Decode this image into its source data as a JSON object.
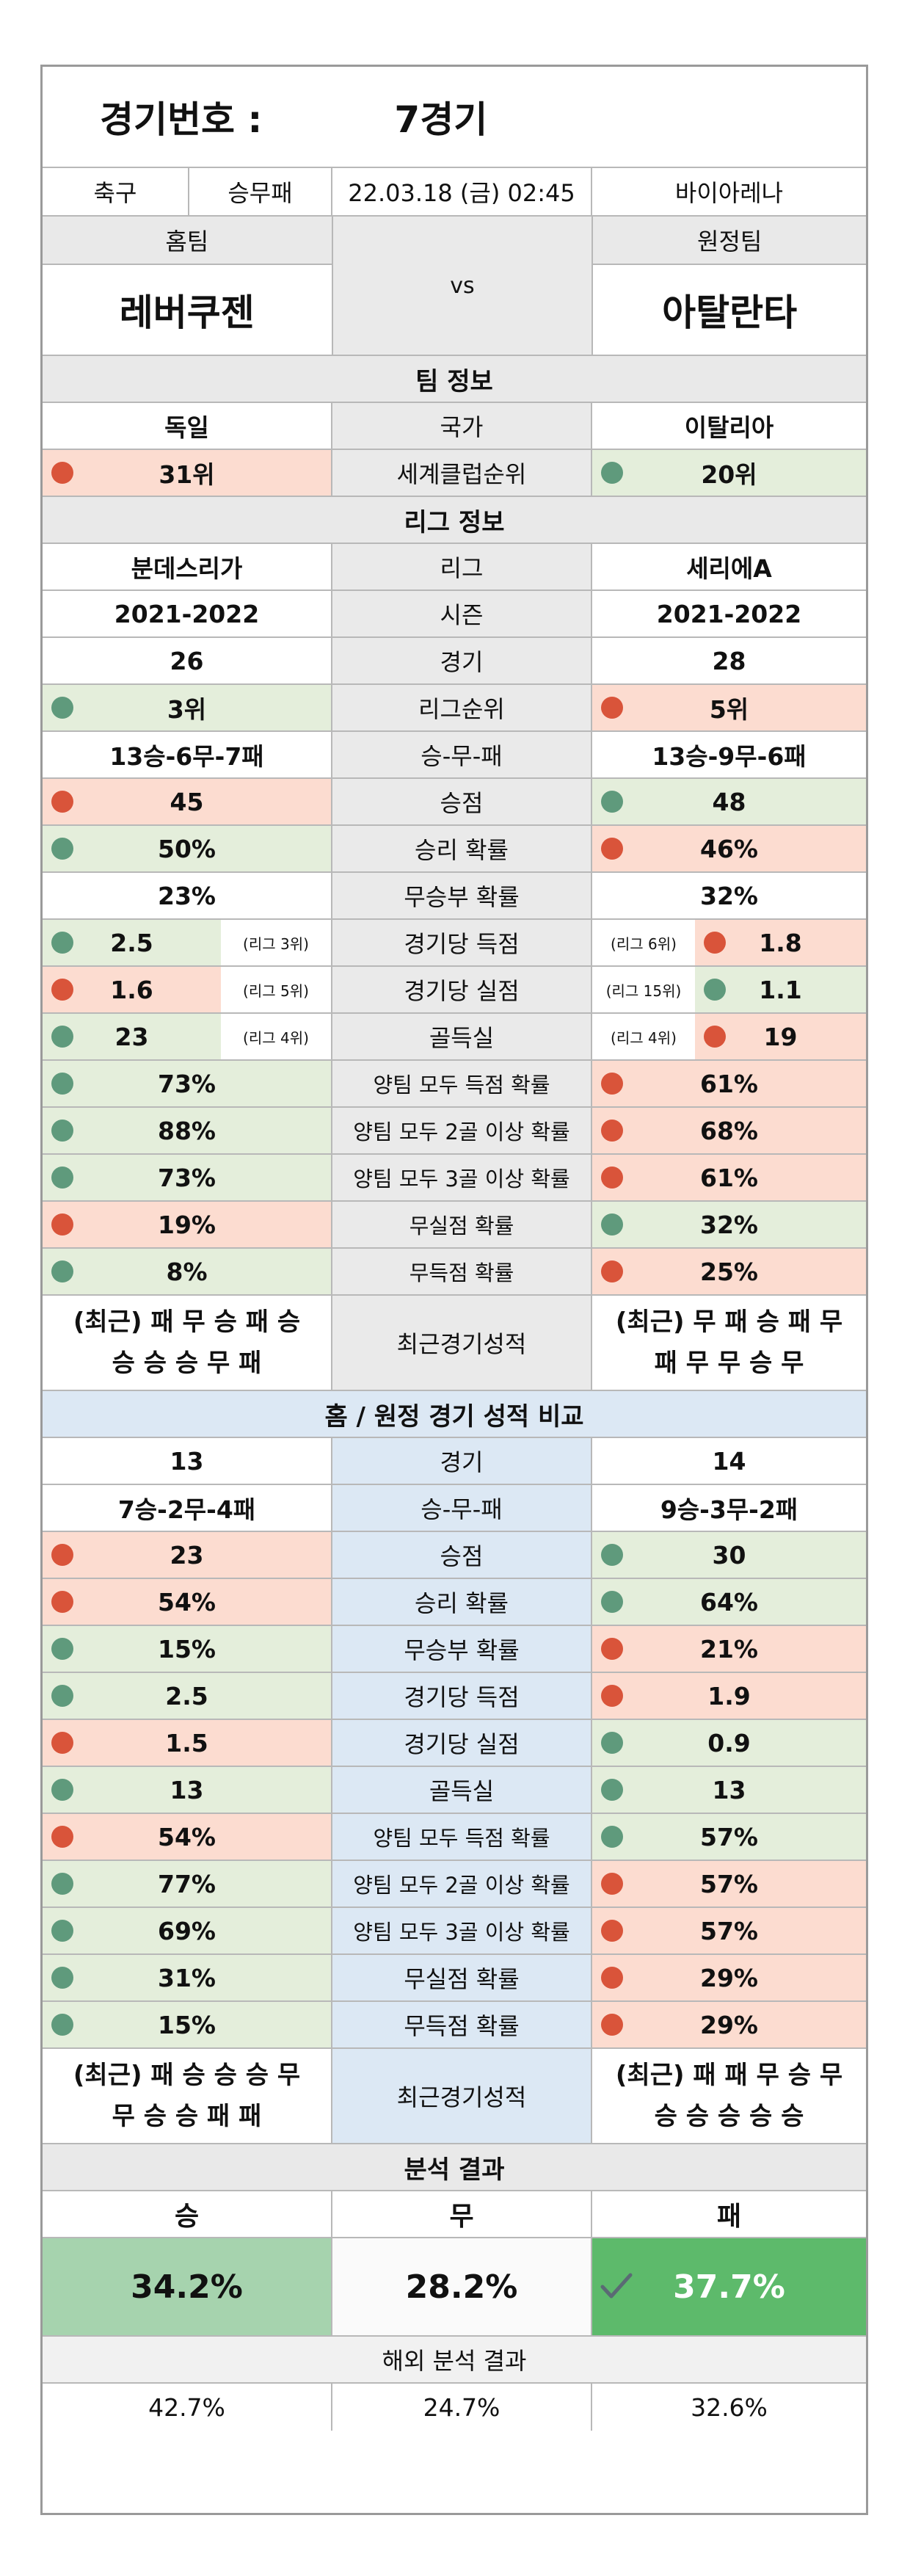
{
  "title": {
    "label": "경기번호 :",
    "value": "7경기"
  },
  "match": {
    "sport": "축구",
    "type": "승무패",
    "datetime": "22.03.18 (금) 02:45",
    "venue": "바이아레나"
  },
  "teams": {
    "home_label": "홈팀",
    "away_label": "원정팀",
    "vs": "vs",
    "home": "레버쿠젠",
    "away": "아탈란타"
  },
  "team_info": {
    "header": "팀 정보",
    "country": {
      "label": "국가",
      "home": "독일",
      "away": "이탈리아"
    },
    "world_rank": {
      "label": "세계클럽순위",
      "home": "31위",
      "away": "20위"
    }
  },
  "league_info": {
    "header": "리그 정보",
    "rows": [
      {
        "label": "리그",
        "home": "분데스리가",
        "away": "세리에A"
      },
      {
        "label": "시즌",
        "home": "2021-2022",
        "away": "2021-2022"
      },
      {
        "label": "경기",
        "home": "26",
        "away": "28"
      },
      {
        "label": "리그순위",
        "home": "3위",
        "away": "5위"
      },
      {
        "label": "승-무-패",
        "home": "13승-6무-7패",
        "away": "13승-9무-6패"
      },
      {
        "label": "승점",
        "home": "45",
        "away": "48"
      },
      {
        "label": "승리 확률",
        "home": "50%",
        "away": "46%"
      },
      {
        "label": "무승부 확률",
        "home": "23%",
        "away": "32%"
      }
    ],
    "split_rows": [
      {
        "label": "경기당 득점",
        "home": "2.5",
        "home_rank": "(리그 3위)",
        "away": "1.8",
        "away_rank": "(리그 6위)"
      },
      {
        "label": "경기당 실점",
        "home": "1.6",
        "home_rank": "(리그 5위)",
        "away": "1.1",
        "away_rank": "(리그 15위)"
      },
      {
        "label": "골득실",
        "home": "23",
        "home_rank": "(리그 4위)",
        "away": "19",
        "away_rank": "(리그 4위)"
      }
    ],
    "prob_rows": [
      {
        "label": "양팀 모두 득점 확률",
        "home": "73%",
        "away": "61%"
      },
      {
        "label": "양팀 모두 2골 이상 확률",
        "home": "88%",
        "away": "68%"
      },
      {
        "label": "양팀 모두 3골 이상 확률",
        "home": "73%",
        "away": "61%"
      },
      {
        "label": "무실점 확률",
        "home": "19%",
        "away": "32%"
      },
      {
        "label": "무득점 확률",
        "home": "8%",
        "away": "25%"
      }
    ],
    "recent": {
      "label": "최근경기성적",
      "home_line1": "(최근) 패 무 승 패 승",
      "home_line2": "승 승 승 무 패",
      "away_line1": "(최근) 무 패 승 패 무",
      "away_line2": "패 무 무 승 무"
    }
  },
  "home_away": {
    "header": "홈 / 원정 경기 성적 비교",
    "rows": [
      {
        "label": "경기",
        "home": "13",
        "away": "14"
      },
      {
        "label": "승-무-패",
        "home": "7승-2무-4패",
        "away": "9승-3무-2패"
      },
      {
        "label": "승점",
        "home": "23",
        "away": "30"
      },
      {
        "label": "승리 확률",
        "home": "54%",
        "away": "64%"
      },
      {
        "label": "무승부 확률",
        "home": "15%",
        "away": "21%"
      },
      {
        "label": "경기당 득점",
        "home": "2.5",
        "away": "1.9"
      },
      {
        "label": "경기당 실점",
        "home": "1.5",
        "away": "0.9"
      },
      {
        "label": "골득실",
        "home": "13",
        "away": "13"
      },
      {
        "label": "양팀 모두 득점 확률",
        "home": "54%",
        "away": "57%"
      },
      {
        "label": "양팀 모두 2골 이상 확률",
        "home": "77%",
        "away": "57%"
      },
      {
        "label": "양팀 모두 3골 이상 확률",
        "home": "69%",
        "away": "57%"
      },
      {
        "label": "무실점 확률",
        "home": "31%",
        "away": "29%"
      },
      {
        "label": "무득점 확률",
        "home": "15%",
        "away": "29%"
      }
    ],
    "recent": {
      "label": "최근경기성적",
      "home_line1": "(최근) 패 승 승 승 무",
      "home_line2": "무 승 승 패 패",
      "away_line1": "(최근) 패 패 무 승 무",
      "away_line2": "승 승 승 승 승"
    }
  },
  "analysis": {
    "header": "분석 결과",
    "win_label": "승",
    "draw_label": "무",
    "lose_label": "패",
    "win": "34.2%",
    "draw": "28.2%",
    "lose": "37.7%",
    "overseas_header": "해외 분석 결과",
    "overseas_win": "42.7%",
    "overseas_draw": "24.7%",
    "overseas_lose": "32.6%"
  },
  "colors": {
    "red_bg": "#fcdcd0",
    "green_bg": "#e4eedb",
    "red_dot": "#d9543a",
    "green_dot": "#5f9a7c",
    "win_box": "#a6d3ae",
    "lose_box": "#5dba6b"
  }
}
